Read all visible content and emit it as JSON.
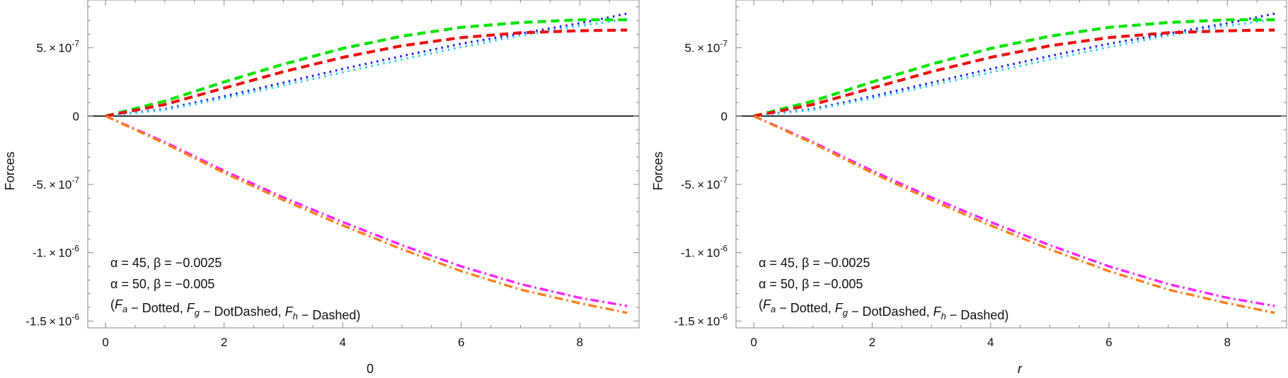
{
  "chart_data": [
    {
      "type": "line",
      "xlabel": "0",
      "xlabel_italic": false,
      "ylabel": "Forces",
      "xlim": [
        -0.3,
        9.0
      ],
      "ylim": [
        -1.55e-06,
        8.5e-07
      ],
      "frame": true,
      "grid": false,
      "x_ticks": [
        {
          "value": 0,
          "label": "0"
        },
        {
          "value": 2,
          "label": "2"
        },
        {
          "value": 4,
          "label": "4"
        },
        {
          "value": 6,
          "label": "6"
        },
        {
          "value": 8,
          "label": "8"
        }
      ],
      "y_ticks": [
        {
          "value": 5e-07,
          "mantissa": "5.",
          "exponent": "-7"
        },
        {
          "value": 0,
          "mantissa": "0",
          "exponent": ""
        },
        {
          "value": -5e-07,
          "mantissa": "-5.",
          "exponent": "-7"
        },
        {
          "value": -1e-06,
          "mantissa": "-1.",
          "exponent": "-6"
        },
        {
          "value": -1.5e-06,
          "mantissa": "-1.5",
          "exponent": "-6"
        }
      ],
      "annotation_lines": [
        "α = 45,  β = −0.0025",
        "α = 50,  β = −0.005",
        "(F_a − Dotted,  F_g − DotDashed,  F_h − Dashed)"
      ],
      "series": [
        {
          "style": "dotted",
          "color": "#1a1aff",
          "x": [
            0,
            1,
            2,
            3,
            4,
            5,
            6,
            7,
            8,
            8.8
          ],
          "y": [
            0,
            5.2e-08,
            1.45e-07,
            2.45e-07,
            3.45e-07,
            4.4e-07,
            5.3e-07,
            6.05e-07,
            6.8e-07,
            7.5e-07
          ]
        },
        {
          "style": "dotted",
          "color": "#33ccff",
          "x": [
            0,
            1,
            2,
            3,
            4,
            5,
            6,
            7,
            8,
            8.8
          ],
          "y": [
            0,
            4.5e-08,
            1.3e-07,
            2.25e-07,
            3.2e-07,
            4.15e-07,
            5.05e-07,
            5.9e-07,
            6.6e-07,
            7.1e-07
          ]
        },
        {
          "style": "dashed",
          "color": "#00e600",
          "x": [
            0,
            1,
            2,
            3,
            4,
            5,
            6,
            7,
            8,
            8.8
          ],
          "y": [
            0,
            1.1e-07,
            2.5e-07,
            3.8e-07,
            4.95e-07,
            5.85e-07,
            6.5e-07,
            6.85e-07,
            7.05e-07,
            7.05e-07
          ]
        },
        {
          "style": "dashed",
          "color": "#ee1111",
          "x": [
            0,
            1,
            2,
            3,
            4,
            5,
            6,
            7,
            8,
            8.8
          ],
          "y": [
            0,
            8.5e-08,
            2.05e-07,
            3.25e-07,
            4.3e-07,
            5.15e-07,
            5.75e-07,
            6.1e-07,
            6.25e-07,
            6.3e-07
          ]
        },
        {
          "style": "dotdashed",
          "color": "#ff22ff",
          "x": [
            0,
            1,
            2,
            3,
            4,
            5,
            6,
            7,
            8,
            8.8
          ],
          "y": [
            0,
            -1.9e-07,
            -4e-07,
            -5.95e-07,
            -7.75e-07,
            -9.45e-07,
            -1.1e-06,
            -1.23e-06,
            -1.33e-06,
            -1.39e-06
          ]
        },
        {
          "style": "dotdashed",
          "color": "#ff7f1a",
          "x": [
            0,
            1,
            2,
            3,
            4,
            5,
            6,
            7,
            8,
            8.8
          ],
          "y": [
            0,
            -2e-07,
            -4.15e-07,
            -6.15e-07,
            -8e-07,
            -9.75e-07,
            -1.135e-06,
            -1.27e-06,
            -1.37e-06,
            -1.44e-06
          ]
        }
      ]
    },
    {
      "type": "line",
      "xlabel": "r",
      "xlabel_italic": true,
      "ylabel": "Forces",
      "xlim": [
        -0.3,
        9.0
      ],
      "ylim": [
        -1.55e-06,
        8.5e-07
      ],
      "frame": true,
      "grid": false,
      "x_ticks": [
        {
          "value": 0,
          "label": "0"
        },
        {
          "value": 2,
          "label": "2"
        },
        {
          "value": 4,
          "label": "4"
        },
        {
          "value": 6,
          "label": "6"
        },
        {
          "value": 8,
          "label": "8"
        }
      ],
      "y_ticks": [
        {
          "value": 5e-07,
          "mantissa": "5.",
          "exponent": "-7"
        },
        {
          "value": 0,
          "mantissa": "0",
          "exponent": ""
        },
        {
          "value": -5e-07,
          "mantissa": "-5.",
          "exponent": "-7"
        },
        {
          "value": -1e-06,
          "mantissa": "-1.",
          "exponent": "-6"
        },
        {
          "value": -1.5e-06,
          "mantissa": "-1.5",
          "exponent": "-6"
        }
      ],
      "annotation_lines": [
        "α = 45,  β = −0.0025",
        "α = 50,  β = −0.005",
        "(F_a − Dotted,  F_g − DotDashed,  F_h − Dashed)"
      ],
      "series": [
        {
          "style": "dotted",
          "color": "#1a1aff",
          "x": [
            0,
            1,
            2,
            3,
            4,
            5,
            6,
            7,
            8,
            8.8
          ],
          "y": [
            0,
            5.2e-08,
            1.45e-07,
            2.45e-07,
            3.45e-07,
            4.4e-07,
            5.3e-07,
            6.05e-07,
            6.8e-07,
            7.5e-07
          ]
        },
        {
          "style": "dotted",
          "color": "#33ccff",
          "x": [
            0,
            1,
            2,
            3,
            4,
            5,
            6,
            7,
            8,
            8.8
          ],
          "y": [
            0,
            4.5e-08,
            1.3e-07,
            2.25e-07,
            3.2e-07,
            4.15e-07,
            5.05e-07,
            5.9e-07,
            6.6e-07,
            7.1e-07
          ]
        },
        {
          "style": "dashed",
          "color": "#00e600",
          "x": [
            0,
            1,
            2,
            3,
            4,
            5,
            6,
            7,
            8,
            8.8
          ],
          "y": [
            0,
            1.1e-07,
            2.5e-07,
            3.8e-07,
            4.95e-07,
            5.85e-07,
            6.5e-07,
            6.85e-07,
            7.05e-07,
            7.05e-07
          ]
        },
        {
          "style": "dashed",
          "color": "#ee1111",
          "x": [
            0,
            1,
            2,
            3,
            4,
            5,
            6,
            7,
            8,
            8.8
          ],
          "y": [
            0,
            8.5e-08,
            2.05e-07,
            3.25e-07,
            4.3e-07,
            5.15e-07,
            5.75e-07,
            6.1e-07,
            6.25e-07,
            6.3e-07
          ]
        },
        {
          "style": "dotdashed",
          "color": "#ff22ff",
          "x": [
            0,
            1,
            2,
            3,
            4,
            5,
            6,
            7,
            8,
            8.8
          ],
          "y": [
            0,
            -1.9e-07,
            -4e-07,
            -5.95e-07,
            -7.75e-07,
            -9.45e-07,
            -1.1e-06,
            -1.23e-06,
            -1.33e-06,
            -1.39e-06
          ]
        },
        {
          "style": "dotdashed",
          "color": "#ff7f1a",
          "x": [
            0,
            1,
            2,
            3,
            4,
            5,
            6,
            7,
            8,
            8.8
          ],
          "y": [
            0,
            -2e-07,
            -4.15e-07,
            -6.15e-07,
            -8e-07,
            -9.75e-07,
            -1.135e-06,
            -1.27e-06,
            -1.37e-06,
            -1.44e-06
          ]
        }
      ]
    }
  ]
}
